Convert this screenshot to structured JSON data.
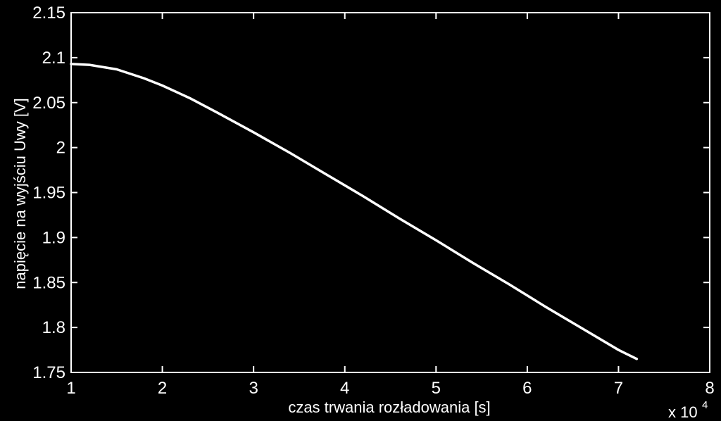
{
  "chart_data": {
    "type": "line",
    "title": "",
    "xlabel": "czas trwania rozładowania [s]",
    "ylabel": "napięcie na wyjściu Uwy [V]",
    "x_exponent_base": "x 10",
    "x_exponent_power": "4",
    "xlim": [
      1,
      8
    ],
    "ylim": [
      1.75,
      2.15
    ],
    "xticks": [
      1,
      2,
      3,
      4,
      5,
      6,
      7,
      8
    ],
    "xtick_labels": [
      "1",
      "2",
      "3",
      "4",
      "5",
      "6",
      "7",
      "8"
    ],
    "yticks": [
      1.75,
      1.8,
      1.85,
      1.9,
      1.95,
      2.0,
      2.05,
      2.1,
      2.15
    ],
    "ytick_labels": [
      "1.75",
      "1.8",
      "1.85",
      "1.9",
      "1.95",
      "2",
      "2.05",
      "2.1",
      "2.15"
    ],
    "grid": false,
    "legend": "none",
    "colors": {
      "background": "#000000",
      "axes": "#ffffff",
      "line": "#ffffff"
    },
    "series": [
      {
        "x": [
          1.0,
          1.2,
          1.5,
          1.8,
          2.0,
          2.3,
          2.6,
          3.0,
          3.4,
          3.8,
          4.2,
          4.6,
          5.0,
          5.4,
          5.8,
          6.2,
          6.6,
          7.0,
          7.2
        ],
        "y": [
          2.093,
          2.092,
          2.087,
          2.077,
          2.069,
          2.055,
          2.039,
          2.017,
          1.994,
          1.97,
          1.946,
          1.921,
          1.897,
          1.872,
          1.848,
          1.823,
          1.799,
          1.775,
          1.765
        ]
      }
    ]
  }
}
